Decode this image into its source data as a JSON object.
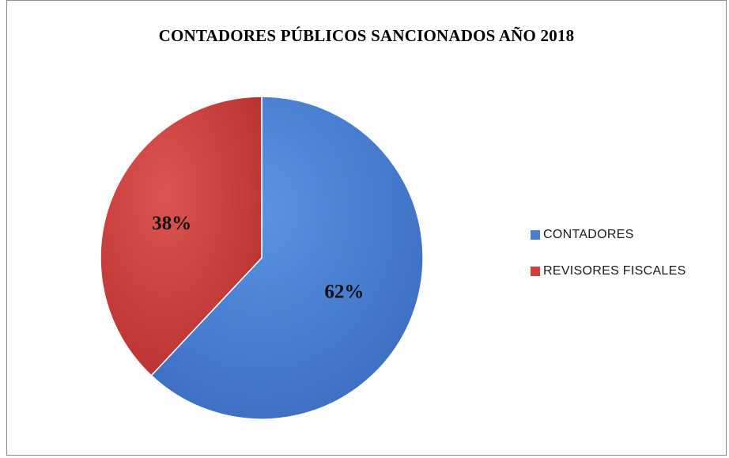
{
  "chart_data": {
    "type": "pie",
    "title": "CONTADORES PÚBLICOS SANCIONADOS AÑO 2018",
    "categories": [
      "CONTADORES",
      "REVISORES FISCALES"
    ],
    "values": [
      62,
      38
    ],
    "data_labels": [
      "62%",
      "38%"
    ],
    "colors": [
      "#4a7fd0",
      "#cf3f3c"
    ],
    "legend_position": "right"
  }
}
